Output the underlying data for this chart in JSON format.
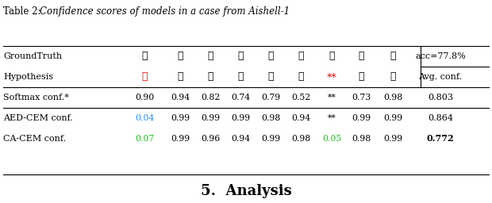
{
  "table_caption_prefix": "Table 2: ",
  "table_caption_italic": "Confidence scores of models in a case from Aishell-1",
  "section_header": "5.  Analysis",
  "rows": [
    {
      "label": "GroundTruth",
      "chars": [
        "美",
        "国",
        "东",
        "卡",
        "罗",
        "莱",
        "纳",
        "大",
        "学"
      ],
      "char_colors": [
        "black",
        "black",
        "black",
        "black",
        "black",
        "black",
        "black",
        "black",
        "black"
      ],
      "right_label": "acc=77.8%",
      "right_label_color": "black",
      "right_label_style": "normal"
    },
    {
      "label": "Hypothesis",
      "chars": [
        "北",
        "国",
        "东",
        "卡",
        "罗",
        "莱",
        "**",
        "大",
        "学"
      ],
      "char_colors": [
        "red",
        "black",
        "black",
        "black",
        "black",
        "black",
        "red",
        "black",
        "black"
      ],
      "right_label": "Avg. conf.",
      "right_label_color": "black",
      "right_label_style": "normal"
    },
    {
      "label": "Softmax conf.*",
      "chars": [
        "0.90",
        "0.94",
        "0.82",
        "0.74",
        "0.79",
        "0.52",
        "**",
        "0.73",
        "0.98"
      ],
      "char_colors": [
        "black",
        "black",
        "black",
        "black",
        "black",
        "black",
        "black",
        "black",
        "black"
      ],
      "right_label": "0.803",
      "right_label_color": "black",
      "right_label_style": "normal"
    },
    {
      "label": "AED-CEM conf.",
      "chars": [
        "0.04",
        "0.99",
        "0.99",
        "0.99",
        "0.98",
        "0.94",
        "**",
        "0.99",
        "0.99"
      ],
      "char_colors": [
        "#1e90ff",
        "black",
        "black",
        "black",
        "black",
        "black",
        "black",
        "black",
        "black"
      ],
      "right_label": "0.864",
      "right_label_color": "black",
      "right_label_style": "normal"
    },
    {
      "label": "CA-CEM conf.",
      "chars": [
        "0.07",
        "0.99",
        "0.96",
        "0.94",
        "0.99",
        "0.98",
        "0.05",
        "0.98",
        "0.99"
      ],
      "char_colors": [
        "#22bb22",
        "black",
        "black",
        "black",
        "black",
        "black",
        "#22bb22",
        "black",
        "black"
      ],
      "right_label": "0.772",
      "right_label_color": "black",
      "right_label_style": "bold"
    }
  ],
  "background_color": "#ffffff",
  "caption_fontsize": 8.5,
  "label_fontsize": 8.0,
  "data_fontsize": 7.8,
  "chinese_fontsize": 9.0,
  "section_fontsize": 13
}
